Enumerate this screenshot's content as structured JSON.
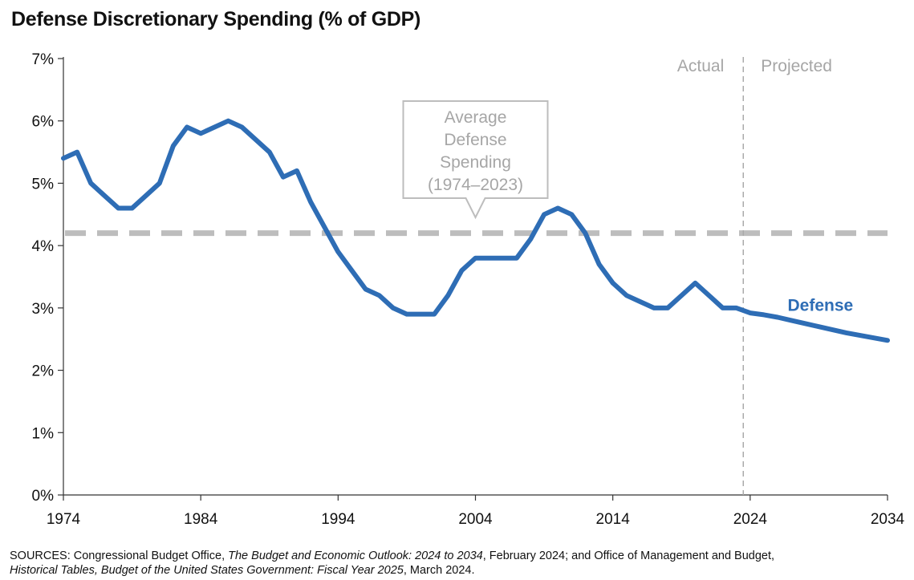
{
  "chart_data": {
    "type": "line",
    "title": "Defense Discretionary Spending (% of GDP)",
    "xlim": [
      1974,
      2034
    ],
    "ylim": [
      0,
      7
    ],
    "x_ticks": [
      "1974",
      "1984",
      "1994",
      "2004",
      "2014",
      "2024",
      "2034"
    ],
    "y_ticks": [
      "0%",
      "1%",
      "2%",
      "3%",
      "4%",
      "5%",
      "6%",
      "7%"
    ],
    "grid": false,
    "divider_year": 2023.5,
    "region_labels": {
      "left": "Actual",
      "right": "Projected"
    },
    "reference_line": {
      "value": 4.2,
      "label_lines": [
        "Average",
        "Defense",
        "Spending",
        "(1974–2023)"
      ]
    },
    "series": [
      {
        "name": "Defense",
        "color": "#2e6db5",
        "x": [
          1974,
          1975,
          1976,
          1977,
          1978,
          1979,
          1980,
          1981,
          1982,
          1983,
          1984,
          1985,
          1986,
          1987,
          1988,
          1989,
          1990,
          1991,
          1992,
          1993,
          1994,
          1995,
          1996,
          1997,
          1998,
          1999,
          2000,
          2001,
          2002,
          2003,
          2004,
          2005,
          2006,
          2007,
          2008,
          2009,
          2010,
          2011,
          2012,
          2013,
          2014,
          2015,
          2016,
          2017,
          2018,
          2019,
          2020,
          2021,
          2022,
          2023,
          2024,
          2025,
          2026,
          2027,
          2028,
          2029,
          2030,
          2031,
          2032,
          2033,
          2034
        ],
        "y": [
          5.4,
          5.5,
          5.0,
          4.8,
          4.6,
          4.6,
          4.8,
          5.0,
          5.6,
          5.9,
          5.8,
          5.9,
          6.0,
          5.9,
          5.7,
          5.5,
          5.1,
          5.2,
          4.7,
          4.3,
          3.9,
          3.6,
          3.3,
          3.2,
          3.0,
          2.9,
          2.9,
          2.9,
          3.2,
          3.6,
          3.8,
          3.8,
          3.8,
          3.8,
          4.1,
          4.5,
          4.6,
          4.5,
          4.2,
          3.7,
          3.4,
          3.2,
          3.1,
          3.0,
          3.0,
          3.2,
          3.4,
          3.2,
          3.0,
          3.0,
          2.92,
          2.89,
          2.85,
          2.8,
          2.75,
          2.7,
          2.65,
          2.6,
          2.56,
          2.52,
          2.48
        ]
      }
    ]
  },
  "source_note": {
    "prefix": "SOURCES: Congressional Budget Office, ",
    "title1": "The Budget and Economic Outlook: 2024 to 2034",
    "mid": ", February 2024; and Office of Management and Budget,",
    "title2": "Historical Tables, Budget of the United States Government: Fiscal Year 2025",
    "suffix": ", March 2024."
  }
}
